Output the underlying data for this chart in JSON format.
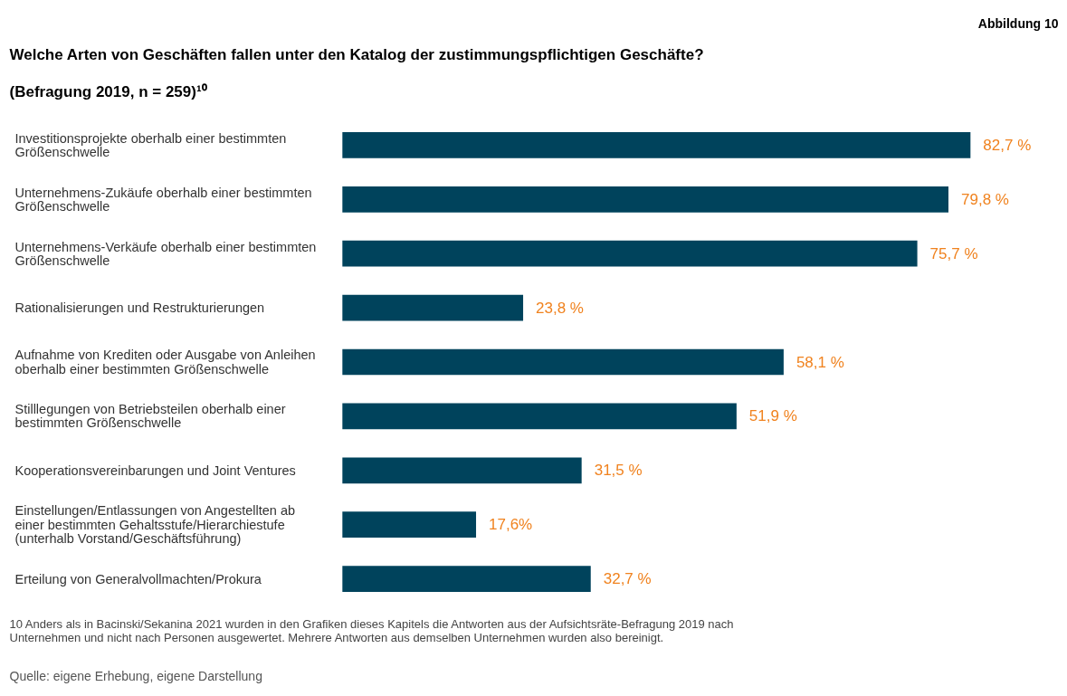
{
  "chart_data": {
    "type": "bar",
    "orientation": "horizontal",
    "title": "Welche Arten von Geschäften fallen unter den Katalog der zustimmungspflichtigen Geschäfte?",
    "subtitle": "(Befragung 2019, n = 259)¹⁰",
    "categories": [
      "Investitionsprojekte oberhalb einer bestimmten Größenschwelle",
      "Unternehmens-Zukäufe oberhalb einer bestimmten Größenschwelle",
      "Unternehmens-Verkäufe oberhalb einer bestimmten Größenschwelle",
      "Rationalisierungen und Restrukturierungen",
      "Aufnahme von Krediten oder Ausgabe von Anleihen oberhalb einer bestimmten Größenschwelle",
      "Stilllegungen von Betriebsteilen oberhalb einer bestimmten Größenschwelle",
      "Kooperationsvereinbarungen und Joint Ventures",
      "Einstellungen/Entlassungen von Angestellten ab einer bestimmten Gehaltsstufe/Hierarchiestufe (unterhalb Vorstand/Geschäftsführung)",
      "Erteilung von Generalvollmachten/Prokura"
    ],
    "values": [
      82.7,
      79.8,
      75.7,
      23.8,
      58.1,
      51.9,
      31.5,
      17.6,
      32.7
    ],
    "value_labels": [
      "82,7 %",
      "79,8 %",
      "75,7 %",
      "23,8 %",
      "58,1 %",
      "51,9 %",
      "31,5 %",
      "17,6%",
      "32,7 %"
    ],
    "color": "#00435c",
    "tick_labels": "y",
    "grid": false,
    "annotations": [
      "Abbildung 10",
      "10  Anders als in Bacinski/Sekanina 2021 wurden in den Grafiken dieses Kapitels die Antworten aus der Aufsichtsräte-Befragung 2019 nach Unternehmen und nicht nach Personen ausgewertet. Mehrere Antworten aus demselben Unternehmen wurden also bereinigt.",
      "Quelle: eigene Erhebung, eigene Darstellung"
    ]
  }
}
